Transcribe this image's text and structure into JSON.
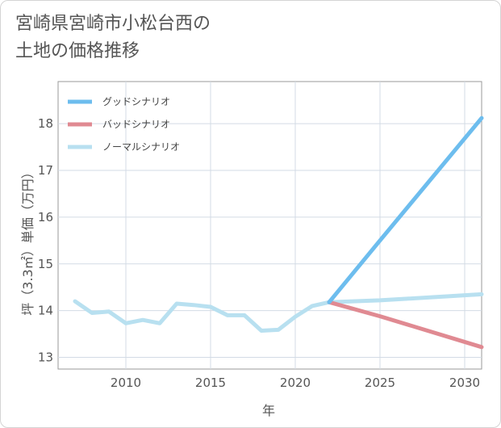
{
  "title_lines": [
    "宮崎県宮崎市小松台西の",
    "土地の価格推移"
  ],
  "chart_data": {
    "type": "line",
    "title": "宮崎県宮崎市小松台西の土地の価格推移",
    "xlabel": "年",
    "ylabel": "坪（3.3㎡）単価（万円）",
    "xlim": [
      2006,
      2031
    ],
    "ylim": [
      12.75,
      18.9
    ],
    "x_ticks": [
      2010,
      2015,
      2020,
      2025,
      2030
    ],
    "y_ticks": [
      13,
      14,
      15,
      16,
      17,
      18
    ],
    "grid": true,
    "legend_position": "top-left",
    "series": [
      {
        "name": "グッドシナリオ",
        "color": "#6dbdee",
        "x": [
          2022,
          2025,
          2031
        ],
        "y": [
          14.18,
          15.5,
          18.12
        ]
      },
      {
        "name": "バッドシナリオ",
        "color": "#e08a92",
        "x": [
          2022,
          2025,
          2031
        ],
        "y": [
          14.18,
          13.88,
          13.22
        ]
      },
      {
        "name": "ノーマルシナリオ",
        "color": "#b8e0f0",
        "x": [
          2007,
          2008,
          2009,
          2010,
          2011,
          2012,
          2013,
          2014,
          2015,
          2016,
          2017,
          2018,
          2019,
          2020,
          2021,
          2022,
          2025,
          2031
        ],
        "y": [
          14.2,
          13.95,
          13.98,
          13.73,
          13.8,
          13.73,
          14.15,
          14.12,
          14.08,
          13.9,
          13.9,
          13.57,
          13.59,
          13.87,
          14.1,
          14.18,
          14.22,
          14.35
        ]
      }
    ]
  }
}
